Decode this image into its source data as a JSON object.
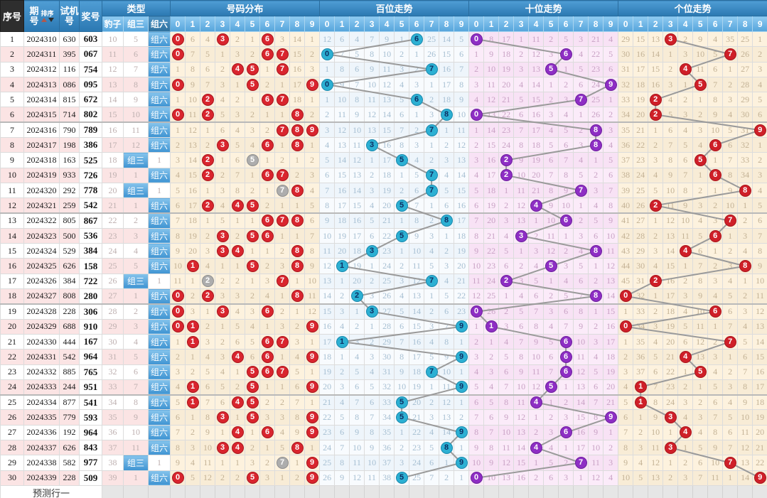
{
  "header": {
    "seq": "序号",
    "period": "期\n号",
    "sort": "排序",
    "test": "试机\n号",
    "prize": "奖号",
    "type": "类型",
    "type_cols": [
      "豹子",
      "组三",
      "组六"
    ],
    "blocks": [
      "号码分布",
      "百位走势",
      "十位走势",
      "个位走势"
    ],
    "digits": [
      "0",
      "1",
      "2",
      "3",
      "4",
      "5",
      "6",
      "7",
      "8",
      "9"
    ]
  },
  "footer": {
    "label": "预测行一"
  },
  "colors": {
    "red_circle": "#d9252e",
    "gray_circle": "#adadad",
    "hundreds_circle": "#2cb0d3",
    "tens_circle": "#8e2ec4",
    "units_circle": "#cf1f28",
    "line": "#9a9a9a",
    "header_blue": "#3c8bc6"
  },
  "seeds": {
    "fenbu": [
      null,
      6,
      4,
      null,
      2,
      1,
      null,
      3,
      14,
      1
    ],
    "bai": [
      12,
      6,
      4,
      7,
      9,
      1,
      null,
      25,
      14,
      5
    ],
    "shi": [
      null,
      8,
      17,
      1,
      11,
      2,
      5,
      3,
      21,
      4
    ],
    "ge": [
      29,
      15,
      13,
      null,
      2,
      9,
      4,
      35,
      25,
      1
    ]
  },
  "rows": [
    {
      "seq": "1",
      "period": "2024310",
      "test": "630",
      "prize": "603",
      "baozi": "10",
      "zu3": "5",
      "zu6": "组六",
      "win": "zu6"
    },
    {
      "seq": "2",
      "period": "2024311",
      "test": "395",
      "prize": "067",
      "baozi": "11",
      "zu3": "6",
      "zu6": "组六",
      "win": "zu6"
    },
    {
      "seq": "3",
      "period": "2024312",
      "test": "116",
      "prize": "754",
      "baozi": "12",
      "zu3": "7",
      "zu6": "组六",
      "win": "zu6"
    },
    {
      "seq": "4",
      "period": "2024313",
      "test": "086",
      "prize": "095",
      "baozi": "13",
      "zu3": "8",
      "zu6": "组六",
      "win": "zu6"
    },
    {
      "seq": "5",
      "period": "2024314",
      "test": "815",
      "prize": "672",
      "baozi": "14",
      "zu3": "9",
      "zu6": "组六",
      "win": "zu6"
    },
    {
      "seq": "6",
      "period": "2024315",
      "test": "714",
      "prize": "802",
      "baozi": "15",
      "zu3": "10",
      "zu6": "组六",
      "win": "zu6"
    },
    {
      "seq": "7",
      "period": "2024316",
      "test": "790",
      "prize": "789",
      "baozi": "16",
      "zu3": "11",
      "zu6": "组六",
      "win": "zu6"
    },
    {
      "seq": "8",
      "period": "2024317",
      "test": "198",
      "prize": "386",
      "baozi": "17",
      "zu3": "12",
      "zu6": "组六",
      "win": "zu6"
    },
    {
      "seq": "9",
      "period": "2024318",
      "test": "163",
      "prize": "525",
      "baozi": "18",
      "zu3": "组三",
      "zu6": "1",
      "win": "zu3"
    },
    {
      "seq": "10",
      "period": "2024319",
      "test": "933",
      "prize": "726",
      "baozi": "19",
      "zu3": "1",
      "zu6": "组六",
      "win": "zu6"
    },
    {
      "seq": "11",
      "period": "2024320",
      "test": "292",
      "prize": "778",
      "baozi": "20",
      "zu3": "组三",
      "zu6": "1",
      "win": "zu3"
    },
    {
      "seq": "12",
      "period": "2024321",
      "test": "259",
      "prize": "542",
      "baozi": "21",
      "zu3": "1",
      "zu6": "组六",
      "win": "zu6"
    },
    {
      "seq": "13",
      "period": "2024322",
      "test": "805",
      "prize": "867",
      "baozi": "22",
      "zu3": "2",
      "zu6": "组六",
      "win": "zu6"
    },
    {
      "seq": "14",
      "period": "2024323",
      "test": "500",
      "prize": "536",
      "baozi": "23",
      "zu3": "3",
      "zu6": "组六",
      "win": "zu6"
    },
    {
      "seq": "15",
      "period": "2024324",
      "test": "529",
      "prize": "384",
      "baozi": "24",
      "zu3": "4",
      "zu6": "组六",
      "win": "zu6"
    },
    {
      "seq": "16",
      "period": "2024325",
      "test": "626",
      "prize": "158",
      "baozi": "25",
      "zu3": "5",
      "zu6": "组六",
      "win": "zu6"
    },
    {
      "seq": "17",
      "period": "2024326",
      "test": "384",
      "prize": "722",
      "baozi": "26",
      "zu3": "组三",
      "zu6": "1",
      "win": "zu3"
    },
    {
      "seq": "18",
      "period": "2024327",
      "test": "808",
      "prize": "280",
      "baozi": "27",
      "zu3": "1",
      "zu6": "组六",
      "win": "zu6"
    },
    {
      "seq": "19",
      "period": "2024328",
      "test": "228",
      "prize": "306",
      "baozi": "28",
      "zu3": "2",
      "zu6": "组六",
      "win": "zu6"
    },
    {
      "seq": "20",
      "period": "2024329",
      "test": "688",
      "prize": "910",
      "baozi": "29",
      "zu3": "3",
      "zu6": "组六",
      "win": "zu6"
    },
    {
      "seq": "21",
      "period": "2024330",
      "test": "444",
      "prize": "167",
      "baozi": "30",
      "zu3": "4",
      "zu6": "组六",
      "win": "zu6"
    },
    {
      "seq": "22",
      "period": "2024331",
      "test": "542",
      "prize": "964",
      "baozi": "31",
      "zu3": "5",
      "zu6": "组六",
      "win": "zu6"
    },
    {
      "seq": "23",
      "period": "2024332",
      "test": "885",
      "prize": "765",
      "baozi": "32",
      "zu3": "6",
      "zu6": "组六",
      "win": "zu6"
    },
    {
      "seq": "24",
      "period": "2024333",
      "test": "244",
      "prize": "951",
      "baozi": "33",
      "zu3": "7",
      "zu6": "组六",
      "win": "zu6"
    },
    {
      "seq": "25",
      "period": "2024334",
      "test": "877",
      "prize": "541",
      "baozi": "34",
      "zu3": "8",
      "zu6": "组六",
      "win": "zu6"
    },
    {
      "seq": "26",
      "period": "2024335",
      "test": "779",
      "prize": "593",
      "baozi": "35",
      "zu3": "9",
      "zu6": "组六",
      "win": "zu6"
    },
    {
      "seq": "27",
      "period": "2024336",
      "test": "192",
      "prize": "964",
      "baozi": "36",
      "zu3": "10",
      "zu6": "组六",
      "win": "zu6"
    },
    {
      "seq": "28",
      "period": "2024337",
      "test": "626",
      "prize": "843",
      "baozi": "37",
      "zu3": "11",
      "zu6": "组六",
      "win": "zu6"
    },
    {
      "seq": "29",
      "period": "2024338",
      "test": "582",
      "prize": "977",
      "baozi": "38",
      "zu3": "组三",
      "zu6": "1",
      "win": "zu3"
    },
    {
      "seq": "30",
      "period": "2024339",
      "test": "228",
      "prize": "509",
      "baozi": "39",
      "zu3": "1",
      "zu6": "组六",
      "win": "zu6"
    }
  ]
}
